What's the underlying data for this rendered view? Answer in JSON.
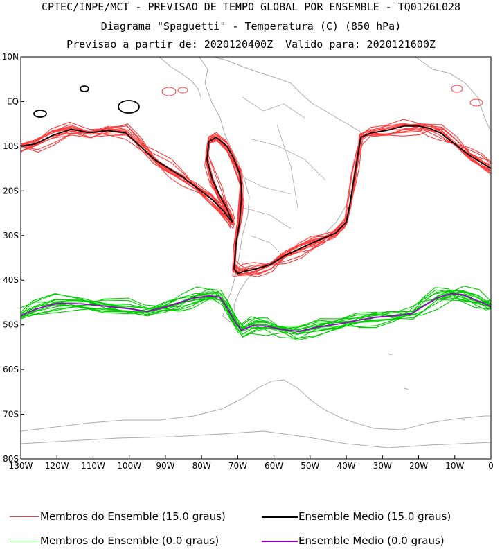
{
  "header": {
    "line1": "CPTEC/INPE/MCT - PREVISAO DE TEMPO GLOBAL POR ENSEMBLE - TQ0126L028",
    "line2": "Diagrama \"Spaguetti\" - Temperatura (C) (850 hPa)",
    "line3": "Previsao a partir de: 2020120400Z  Valido para: 2020121600Z"
  },
  "map": {
    "lon_range": [
      -130,
      0
    ],
    "lat_range": [
      -80,
      10
    ],
    "lat_ticks": [
      "10N",
      "EQ",
      "10S",
      "20S",
      "30S",
      "40S",
      "50S",
      "60S",
      "70S",
      "80S"
    ],
    "lon_ticks": [
      "130W",
      "120W",
      "110W",
      "100W",
      "90W",
      "80W",
      "70W",
      "60W",
      "50W",
      "40W",
      "30W",
      "20W",
      "10W",
      "0"
    ],
    "colors": {
      "member_15": "#ff3b3b",
      "mean_15": "#000000",
      "member_0": "#00cc00",
      "mean_0": "#9900cc",
      "coast": "#aaaaaa"
    }
  },
  "legend": {
    "members_15": "Membros do Ensemble (15.0 graus)",
    "mean_15": "Ensemble Medio (15.0 graus)",
    "members_0": "Membros do Ensemble (0.0 graus)",
    "mean_0": "Ensemble Medio (0.0 graus)"
  },
  "chart_data": {
    "type": "line",
    "xlabel": "",
    "ylabel": "",
    "xlim": [
      -130,
      0
    ],
    "ylim": [
      -80,
      10
    ],
    "series": [
      {
        "name": "Ensemble Medio (15.0 graus)",
        "x": [
          -130,
          -126,
          -121,
          -116,
          -111,
          -106,
          -101,
          -97,
          -93,
          -89,
          -85,
          -81,
          -77,
          -74,
          -72,
          -71.5,
          -72,
          -73,
          -75,
          -77,
          -78.5,
          -78,
          -76,
          -73,
          -71,
          -69.5,
          -69,
          -69,
          -69.5,
          -70.5,
          -71,
          -70,
          -68,
          -65,
          -61,
          -57,
          -53,
          -49,
          -46,
          -43,
          -40,
          -39,
          -38,
          -37,
          -36,
          -33,
          -29,
          -24,
          -20,
          -17,
          -14,
          -10,
          -6,
          -3,
          0
        ],
        "y": [
          -10,
          -9.5,
          -7.5,
          -6.2,
          -7,
          -6.5,
          -7,
          -10,
          -13,
          -15,
          -17,
          -19.5,
          -22,
          -24.5,
          -26.5,
          -27,
          -26,
          -24,
          -21,
          -17.5,
          -13,
          -9,
          -8,
          -10,
          -13,
          -16,
          -19,
          -22,
          -27,
          -32,
          -37.5,
          -38.5,
          -38,
          -37.5,
          -36.5,
          -34.5,
          -33,
          -31.5,
          -30.5,
          -29.5,
          -27,
          -23,
          -18,
          -13,
          -8,
          -7,
          -6.5,
          -5.5,
          -5.5,
          -6,
          -7,
          -9.5,
          -12,
          -13.5,
          -15
        ]
      },
      {
        "name": "Ensemble Medio (0.0 graus)",
        "x": [
          -130,
          -126,
          -120,
          -113,
          -107,
          -100,
          -95,
          -90,
          -86,
          -82,
          -78,
          -75,
          -73,
          -71,
          -69,
          -66,
          -62,
          -58,
          -53,
          -48,
          -42,
          -37,
          -32,
          -27,
          -22,
          -19,
          -15,
          -11,
          -8,
          -4,
          -1,
          0
        ],
        "y": [
          -48,
          -46.5,
          -45.2,
          -45.3,
          -45.8,
          -46.4,
          -47,
          -46,
          -45,
          -44,
          -43.5,
          -43.8,
          -46,
          -49,
          -51.2,
          -50.2,
          -50.3,
          -51,
          -51.5,
          -50.5,
          -49.8,
          -49,
          -48.3,
          -48,
          -47.5,
          -46,
          -44,
          -43,
          -43.2,
          -44.5,
          -45.5,
          -46
        ]
      }
    ]
  }
}
